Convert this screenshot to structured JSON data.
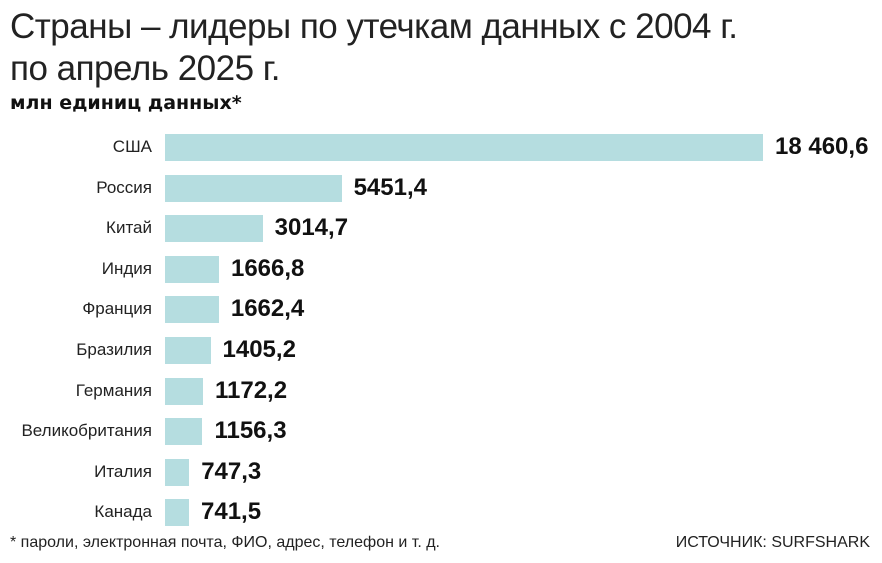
{
  "chart_data": {
    "type": "bar",
    "orientation": "horizontal",
    "title_line1": "Страны – лидеры по утечкам данных с 2004 г.",
    "title_line2": "по апрель 2025 г.",
    "ylabel": "млн единиц данных*",
    "categories": [
      "США",
      "Россия",
      "Китай",
      "Индия",
      "Франция",
      "Бразилия",
      "Германия",
      "Великобритания",
      "Италия",
      "Канада"
    ],
    "values": [
      18460.6,
      5451.4,
      3014.7,
      1666.8,
      1662.4,
      1405.2,
      1172.2,
      1156.3,
      747.3,
      741.5
    ],
    "value_labels": [
      "18 460,6",
      "5451,4",
      "3014,7",
      "1666,8",
      "1662,4",
      "1405,2",
      "1172,2",
      "1156,3",
      "747,3",
      "741,5"
    ],
    "bar_color": "#b5dde0",
    "footnote": "* пароли, электронная почта, ФИО, адрес, телефон и т. д.",
    "source": "ИСТОЧНИК: SURFSHARK"
  }
}
